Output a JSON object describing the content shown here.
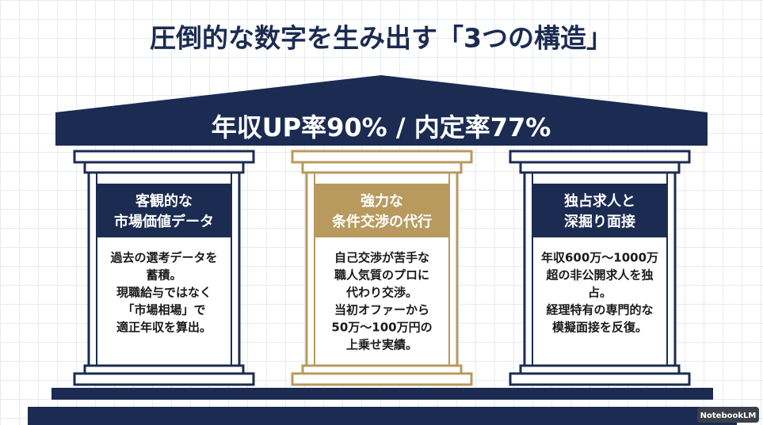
{
  "title": "圧倒的な数字を生み出す「3つの構造」",
  "banner": "年収UP率90% / 内定率77%",
  "pillars": [
    {
      "heading": [
        "客観的な",
        "市場価値データ"
      ],
      "body": [
        "過去の選考データを",
        "蓄積。",
        "現職給与ではなく",
        "「市場相場」で",
        "適正年収を算出。"
      ]
    },
    {
      "heading": [
        "強力な",
        "条件交渉の代行"
      ],
      "body": [
        "自己交渉が苦手な",
        "職人気質のプロに",
        "代わり交渉。",
        "当初オファーから",
        "50万〜100万円の",
        "上乗せ実績。"
      ]
    },
    {
      "heading": [
        "独占求人と",
        "深掘り面接"
      ],
      "body": [
        "年収600万〜1000万",
        "超の非公開求人を独",
        "占。",
        "経理特有の専門的な",
        "模擬面接を反復。"
      ]
    }
  ],
  "watermark": "NotebookLM"
}
